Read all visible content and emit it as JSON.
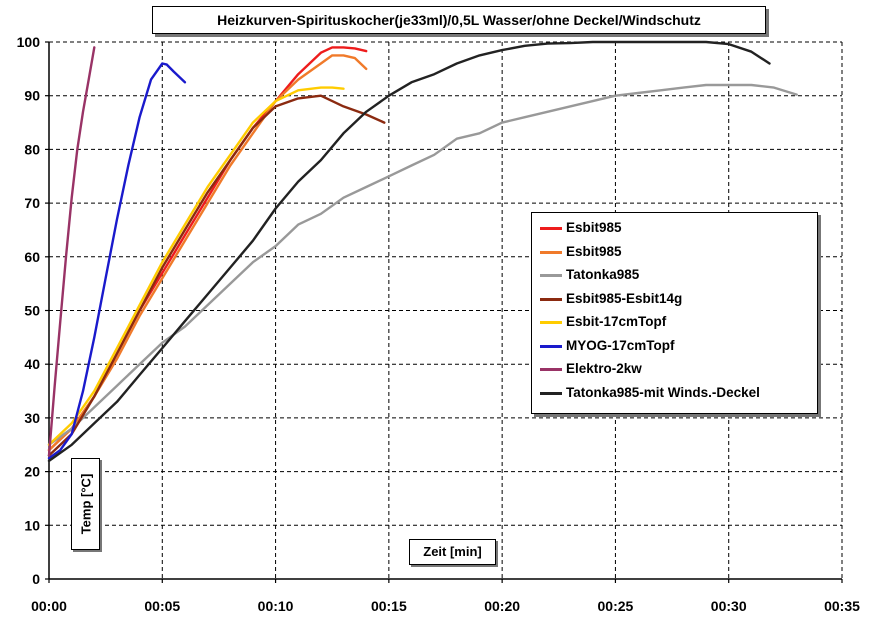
{
  "chart_data": {
    "type": "line",
    "title": "Heizkurven-Spirituskocher(je33ml)/0,5L Wasser/ohne Deckel/Windschutz",
    "xlabel": "Zeit [min]",
    "ylabel": "Temp [°C]",
    "xlim": [
      0,
      35
    ],
    "ylim": [
      0,
      100
    ],
    "x_ticks": [
      0,
      5,
      10,
      15,
      20,
      25,
      30,
      35
    ],
    "x_tick_labels": [
      "00:00",
      "00:05",
      "00:10",
      "00:15",
      "00:20",
      "00:25",
      "00:30",
      "00:35"
    ],
    "y_ticks": [
      0,
      10,
      20,
      30,
      40,
      50,
      60,
      70,
      80,
      90,
      100
    ],
    "y_tick_labels": [
      "0",
      "10",
      "20",
      "30",
      "40",
      "50",
      "60",
      "70",
      "80",
      "90",
      "100"
    ],
    "grid": true,
    "legend_position": "right",
    "series": [
      {
        "name": "Esbit985",
        "color": "#ee1c1c",
        "x": [
          0,
          1,
          2,
          3,
          4,
          5,
          6,
          7,
          8,
          9,
          10,
          11,
          12,
          12.5,
          13,
          13.5,
          14
        ],
        "y": [
          24,
          28,
          34,
          42,
          50,
          57,
          64,
          71,
          78,
          84,
          89,
          94,
          98,
          99,
          99,
          98.8,
          98.3
        ]
      },
      {
        "name": "Esbit985",
        "color": "#f07a2a",
        "x": [
          0,
          1,
          2,
          3,
          4,
          5,
          6,
          7,
          8,
          9,
          10,
          11,
          12,
          12.5,
          13,
          13.5,
          14
        ],
        "y": [
          24,
          28,
          34,
          41,
          49,
          56,
          63,
          70,
          77,
          83,
          89,
          93,
          96,
          97.5,
          97.5,
          97,
          95
        ]
      },
      {
        "name": "Tatonka985",
        "color": "#999999",
        "x": [
          0,
          1,
          2,
          3,
          4,
          5,
          6,
          7,
          8,
          9,
          10,
          11,
          12,
          13,
          14,
          15,
          16,
          17,
          18,
          19,
          20,
          21,
          22,
          23,
          24,
          25,
          26,
          27,
          28,
          29,
          30,
          31,
          32,
          33
        ],
        "y": [
          25,
          28,
          32,
          36,
          40,
          44,
          47,
          51,
          55,
          59,
          62,
          66,
          68,
          71,
          73,
          75,
          77,
          79,
          82,
          83,
          85,
          86,
          87,
          88,
          89,
          90,
          90.5,
          91,
          91.5,
          92,
          92,
          92,
          91.5,
          90.2
        ]
      },
      {
        "name": "Esbit985-Esbit14g",
        "color": "#8b2a10",
        "x": [
          0,
          1,
          2,
          3,
          4,
          5,
          6,
          7,
          8,
          9,
          10,
          11,
          12,
          13,
          14,
          14.8
        ],
        "y": [
          23,
          27,
          34,
          42,
          50,
          58,
          65,
          72,
          78,
          84,
          88,
          89.5,
          90,
          88,
          86.5,
          85
        ]
      },
      {
        "name": "Esbit-17cmTopf",
        "color": "#ffcc00",
        "x": [
          0,
          1,
          2,
          3,
          4,
          5,
          6,
          7,
          8,
          9,
          10,
          11,
          12,
          12.5,
          13
        ],
        "y": [
          25,
          29,
          35,
          43,
          51,
          59,
          66,
          73,
          79,
          85,
          89,
          91,
          91.5,
          91.5,
          91.3
        ]
      },
      {
        "name": "MYOG-17cmTopf",
        "color": "#1a1acc",
        "x": [
          0,
          0.5,
          1,
          1.5,
          2,
          2.5,
          3,
          3.5,
          4,
          4.5,
          5,
          5.2,
          5.5,
          6
        ],
        "y": [
          22.5,
          24,
          27,
          35,
          45,
          56,
          67,
          77,
          86,
          93,
          96,
          95.8,
          94.5,
          92.5
        ]
      },
      {
        "name": "Elektro-2kw",
        "color": "#993366",
        "x": [
          0,
          0.25,
          0.5,
          0.75,
          1,
          1.25,
          1.5,
          1.75,
          2
        ],
        "y": [
          23,
          36,
          48,
          60,
          71,
          80,
          87,
          93,
          99
        ]
      },
      {
        "name": "Tatonka985-mit Winds.-Deckel",
        "color": "#222222",
        "x": [
          0,
          1,
          2,
          3,
          4,
          5,
          6,
          7,
          8,
          9,
          10,
          11,
          12,
          13,
          14,
          15,
          16,
          17,
          18,
          19,
          20,
          21,
          22,
          23,
          24,
          25,
          26,
          27,
          28,
          29,
          30,
          31,
          31.8
        ],
        "y": [
          22,
          25,
          29,
          33,
          38,
          43,
          48,
          53,
          58,
          63,
          69,
          74,
          78,
          83,
          87,
          90,
          92.5,
          94,
          96,
          97.5,
          98.5,
          99.3,
          99.7,
          99.8,
          100,
          100,
          100,
          100,
          100,
          100,
          99.6,
          98.2,
          96
        ]
      }
    ]
  }
}
